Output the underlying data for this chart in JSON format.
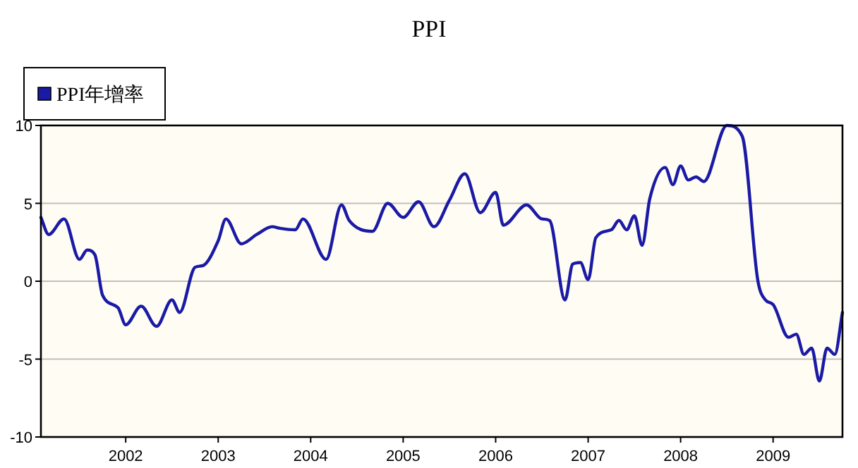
{
  "chart_data": {
    "type": "line",
    "title": "PPI",
    "series": [
      {
        "name": "PPI年增率",
        "color": "#1a1aa6",
        "x": [
          "2001-02",
          "2001-03",
          "2001-05",
          "2001-07",
          "2001-08",
          "2001-09",
          "2001-10",
          "2001-12",
          "2002-01",
          "2002-03",
          "2002-05",
          "2002-07",
          "2002-08",
          "2002-10",
          "2002-11",
          "2003-01",
          "2003-02",
          "2003-04",
          "2003-06",
          "2003-08",
          "2003-09",
          "2003-11",
          "2003-12",
          "2004-03",
          "2004-05",
          "2004-06",
          "2004-09",
          "2004-11",
          "2005-01",
          "2005-03",
          "2005-05",
          "2005-07",
          "2005-09",
          "2005-11",
          "2006-01",
          "2006-02",
          "2006-05",
          "2006-07",
          "2006-08",
          "2006-10",
          "2006-11",
          "2006-12",
          "2007-01",
          "2007-02",
          "2007-04",
          "2007-05",
          "2007-06",
          "2007-07",
          "2007-08",
          "2007-09",
          "2007-11",
          "2007-12",
          "2008-01",
          "2008-02",
          "2008-03",
          "2008-04",
          "2008-07",
          "2008-09",
          "2008-11",
          "2008-12",
          "2009-01",
          "2009-03",
          "2009-04",
          "2009-05",
          "2009-06",
          "2009-07",
          "2009-08",
          "2009-09",
          "2009-10"
        ],
        "values": [
          4.1,
          3.0,
          4.0,
          1.4,
          2.0,
          1.7,
          -0.9,
          -1.7,
          -2.8,
          -1.6,
          -2.9,
          -1.2,
          -2.0,
          0.9,
          1.0,
          2.6,
          4.0,
          2.4,
          3.0,
          3.5,
          3.4,
          3.3,
          4.0,
          1.4,
          4.9,
          3.9,
          3.2,
          5.0,
          4.1,
          5.1,
          3.5,
          5.2,
          6.9,
          4.4,
          5.7,
          3.6,
          4.9,
          4.0,
          3.9,
          -1.2,
          1.1,
          1.2,
          0.1,
          2.8,
          3.3,
          3.9,
          3.3,
          4.2,
          2.3,
          5.3,
          7.3,
          6.2,
          7.4,
          6.5,
          6.7,
          6.4,
          10.0,
          9.3,
          0.1,
          -1.2,
          -1.5,
          -3.6,
          -3.4,
          -4.7,
          -4.3,
          -6.4,
          -4.3,
          -4.7,
          -2.0
        ]
      }
    ],
    "xlim": [
      "2001-02",
      "2009-10"
    ],
    "xticks": [
      "2002",
      "2003",
      "2004",
      "2005",
      "2006",
      "2007",
      "2008",
      "2009"
    ],
    "ylim": [
      -10,
      10
    ],
    "yticks": [
      -10,
      -5,
      0,
      5,
      10
    ],
    "grid": "y",
    "legend": "top left",
    "marker": "none",
    "line_style": "solid"
  }
}
